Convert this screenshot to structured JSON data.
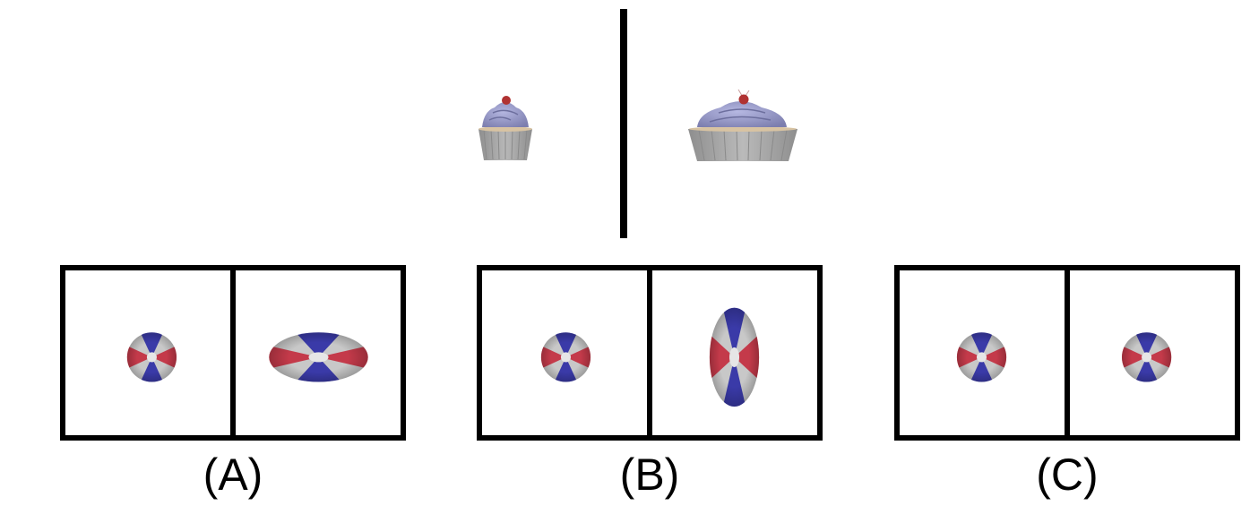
{
  "top": {
    "cupcake_small_icon": "cupcake-icon",
    "cupcake_large_icon": "cupcake-icon",
    "colors": {
      "wrapper": "#a9a9a9",
      "frosting": "#8d8fbf",
      "cherry": "#b03232",
      "cake": "#d8c3a2"
    }
  },
  "options": [
    {
      "label": "(A)",
      "left_object": "ball-icon",
      "right_object": "ball-icon"
    },
    {
      "label": "(B)",
      "left_object": "ball-icon",
      "right_object": "ball-icon"
    },
    {
      "label": "(C)",
      "left_object": "ball-icon",
      "right_object": "ball-icon"
    }
  ],
  "ball_colors": {
    "red": "#c43a4a",
    "blue": "#3a3aa8",
    "gray": "#c8c8c8",
    "center": "#e6e6e6"
  }
}
